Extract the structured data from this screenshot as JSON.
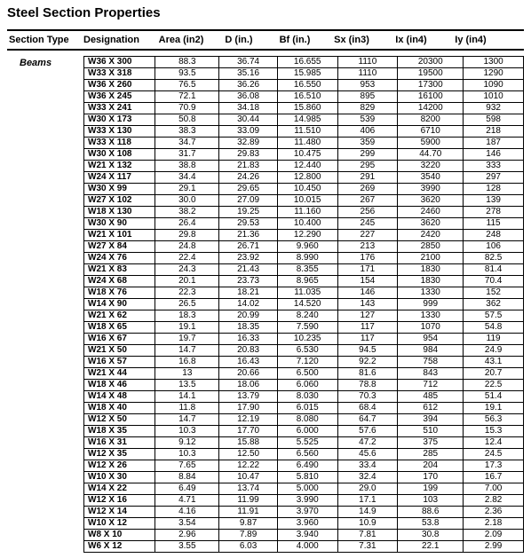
{
  "title": "Steel Section Properties",
  "columns": {
    "sectionType": "Section Type",
    "designation": "Designation",
    "area": "Area (in2)",
    "d": "D (in.)",
    "bf": "Bf (in.)",
    "sx": "Sx (in3)",
    "ix": "Ix (in4)",
    "iy": "Iy (in4)"
  },
  "sectionTypeLabel": "Beams",
  "rows": [
    [
      "W36 X 300",
      "88.3",
      "36.74",
      "16.655",
      "1110",
      "20300",
      "1300"
    ],
    [
      "W33 X 318",
      "93.5",
      "35.16",
      "15.985",
      "1110",
      "19500",
      "1290"
    ],
    [
      "W36 X 260",
      "76.5",
      "36.26",
      "16.550",
      "953",
      "17300",
      "1090"
    ],
    [
      "W36 X 245",
      "72.1",
      "36.08",
      "16.510",
      "895",
      "16100",
      "1010"
    ],
    [
      "W33 X 241",
      "70.9",
      "34.18",
      "15.860",
      "829",
      "14200",
      "932"
    ],
    [
      "W30 X 173",
      "50.8",
      "30.44",
      "14.985",
      "539",
      "8200",
      "598"
    ],
    [
      "W33 X 130",
      "38.3",
      "33.09",
      "11.510",
      "406",
      "6710",
      "218"
    ],
    [
      "W33 X 118",
      "34.7",
      "32.89",
      "11.480",
      "359",
      "5900",
      "187"
    ],
    [
      "W30 X 108",
      "31.7",
      "29.83",
      "10.475",
      "299",
      "44.70",
      "146"
    ],
    [
      "W21 X 132",
      "38.8",
      "21.83",
      "12.440",
      "295",
      "3220",
      "333"
    ],
    [
      "W24 X 117",
      "34.4",
      "24.26",
      "12.800",
      "291",
      "3540",
      "297"
    ],
    [
      "W30 X 99",
      "29.1",
      "29.65",
      "10.450",
      "269",
      "3990",
      "128"
    ],
    [
      "W27 X 102",
      "30.0",
      "27.09",
      "10.015",
      "267",
      "3620",
      "139"
    ],
    [
      "W18 X 130",
      "38.2",
      "19.25",
      "11.160",
      "256",
      "2460",
      "278"
    ],
    [
      "W30 X 90",
      "26.4",
      "29.53",
      "10.400",
      "245",
      "3620",
      "115"
    ],
    [
      "W21 X 101",
      "29.8",
      "21.36",
      "12.290",
      "227",
      "2420",
      "248"
    ],
    [
      "W27 X 84",
      "24.8",
      "26.71",
      "9.960",
      "213",
      "2850",
      "106"
    ],
    [
      "W24 X 76",
      "22.4",
      "23.92",
      "8.990",
      "176",
      "2100",
      "82.5"
    ],
    [
      "W21 X 83",
      "24.3",
      "21.43",
      "8.355",
      "171",
      "1830",
      "81.4"
    ],
    [
      "W24 X 68",
      "20.1",
      "23.73",
      "8.965",
      "154",
      "1830",
      "70.4"
    ],
    [
      "W18 X 76",
      "22.3",
      "18.21",
      "11.035",
      "146",
      "1330",
      "152"
    ],
    [
      "W14 X 90",
      "26.5",
      "14.02",
      "14.520",
      "143",
      "999",
      "362"
    ],
    [
      "W21 X 62",
      "18.3",
      "20.99",
      "8.240",
      "127",
      "1330",
      "57.5"
    ],
    [
      "W18 X 65",
      "19.1",
      "18.35",
      "7.590",
      "117",
      "1070",
      "54.8"
    ],
    [
      "W16 X 67",
      "19.7",
      "16.33",
      "10.235",
      "117",
      "954",
      "119"
    ],
    [
      "W21 X 50",
      "14.7",
      "20.83",
      "6.530",
      "94.5",
      "984",
      "24.9"
    ],
    [
      "W16 X 57",
      "16.8",
      "16.43",
      "7.120",
      "92.2",
      "758",
      "43.1"
    ],
    [
      "W21 X 44",
      "13",
      "20.66",
      "6.500",
      "81.6",
      "843",
      "20.7"
    ],
    [
      "W18 X 46",
      "13.5",
      "18.06",
      "6.060",
      "78.8",
      "712",
      "22.5"
    ],
    [
      "W14 X 48",
      "14.1",
      "13.79",
      "8.030",
      "70.3",
      "485",
      "51.4"
    ],
    [
      "W18 X 40",
      "11.8",
      "17.90",
      "6.015",
      "68.4",
      "612",
      "19.1"
    ],
    [
      "W12 X 50",
      "14.7",
      "12.19",
      "8.080",
      "64.7",
      "394",
      "56.3"
    ],
    [
      "W18 X 35",
      "10.3",
      "17.70",
      "6.000",
      "57.6",
      "510",
      "15.3"
    ],
    [
      "W16 X 31",
      "9.12",
      "15.88",
      "5.525",
      "47.2",
      "375",
      "12.4"
    ],
    [
      "W12 X 35",
      "10.3",
      "12.50",
      "6.560",
      "45.6",
      "285",
      "24.5"
    ],
    [
      "W12 X 26",
      "7.65",
      "12.22",
      "6.490",
      "33.4",
      "204",
      "17.3"
    ],
    [
      "W10 X 30",
      "8.84",
      "10.47",
      "5.810",
      "32.4",
      "170",
      "16.7"
    ],
    [
      "W14 X 22",
      "6.49",
      "13.74",
      "5.000",
      "29.0",
      "199",
      "7.00"
    ],
    [
      "W12 X 16",
      "4.71",
      "11.99",
      "3.990",
      "17.1",
      "103",
      "2.82"
    ],
    [
      "W12 X 14",
      "4.16",
      "11.91",
      "3.970",
      "14.9",
      "88.6",
      "2.36"
    ],
    [
      "W10 X 12",
      "3.54",
      "9.87",
      "3.960",
      "10.9",
      "53.8",
      "2.18"
    ],
    [
      "W8 X 10",
      "2.96",
      "7.89",
      "3.940",
      "7.81",
      "30.8",
      "2.09"
    ],
    [
      "W6 X 12",
      "3.55",
      "6.03",
      "4.000",
      "7.31",
      "22.1",
      "2.99"
    ]
  ],
  "styling": {
    "bodyBackground": "#ffffff",
    "textColor": "#000000",
    "headerBorderColor": "#000000",
    "cellBorderColor": "#000000",
    "titleFontSize": 15,
    "headerFontSize": 11,
    "cellFontSize": 10,
    "fontFamily": "Arial"
  }
}
